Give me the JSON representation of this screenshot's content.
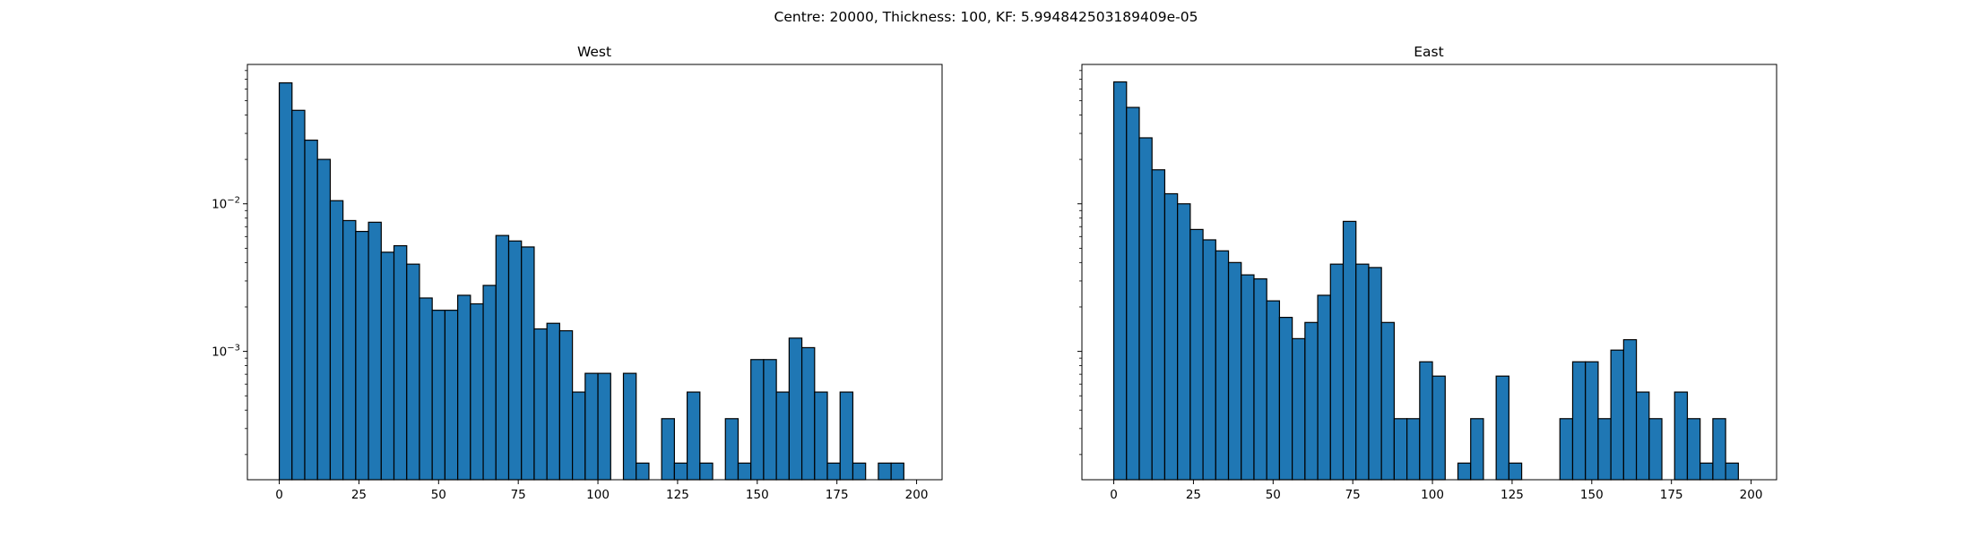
{
  "figure": {
    "suptitle": "Centre: 20000, Thickness: 100, KF: 5.994842503189409e-05"
  },
  "chart_data": [
    {
      "type": "bar",
      "title": "West",
      "xlabel": "",
      "ylabel": "",
      "yscale": "log",
      "xlim": [
        -10,
        208
      ],
      "ylim": [
        0.000135,
        0.088
      ],
      "xticks": [
        0,
        25,
        50,
        75,
        100,
        125,
        150,
        175,
        200
      ],
      "yticks": [
        0.001,
        0.01
      ],
      "ytick_labels": [
        "10−3",
        "10−2"
      ],
      "bin_width": 4,
      "bin_edges_start": 0,
      "values": [
        0.066,
        0.043,
        0.027,
        0.02,
        0.0105,
        0.0077,
        0.0065,
        0.0075,
        0.0047,
        0.0052,
        0.0039,
        0.0023,
        0.0019,
        0.0019,
        0.0024,
        0.0021,
        0.0028,
        0.0061,
        0.0056,
        0.0051,
        0.00142,
        0.00155,
        0.00138,
        0.00053,
        0.00071,
        0.00071,
        0,
        0.00071,
        0.000175,
        0,
        0.00035,
        0.000175,
        0.00053,
        0.000175,
        0,
        0.00035,
        0.000175,
        0.00088,
        0.00088,
        0.00053,
        0.00123,
        0.00106,
        0.00053,
        0.000175,
        0.00053,
        0.000175,
        0,
        0.000175,
        0.000175,
        0
      ],
      "bar_color": "#1f77b4",
      "edge_color": "#000000",
      "grid": false
    },
    {
      "type": "bar",
      "title": "East",
      "xlabel": "",
      "ylabel": "",
      "yscale": "log",
      "xlim": [
        -10,
        208
      ],
      "ylim": [
        0.000135,
        0.088
      ],
      "xticks": [
        0,
        25,
        50,
        75,
        100,
        125,
        150,
        175,
        200
      ],
      "yticks": [
        0.001,
        0.01
      ],
      "ytick_labels": [
        "",
        ""
      ],
      "bin_width": 4,
      "bin_edges_start": 0,
      "values": [
        0.067,
        0.045,
        0.028,
        0.017,
        0.0117,
        0.01,
        0.0067,
        0.0057,
        0.0048,
        0.004,
        0.0033,
        0.0031,
        0.0022,
        0.0017,
        0.00122,
        0.00157,
        0.0024,
        0.0039,
        0.0076,
        0.0039,
        0.0037,
        0.00157,
        0.00035,
        0.00035,
        0.00085,
        0.00068,
        0,
        0.000175,
        0.00035,
        0,
        0.00068,
        0.000175,
        0,
        0,
        0,
        0.00035,
        0.00085,
        0.00085,
        0.00035,
        0.00102,
        0.0012,
        0.00053,
        0.00035,
        0,
        0.00053,
        0.00035,
        0.000175,
        0.00035,
        0.000175,
        0
      ],
      "bar_color": "#1f77b4",
      "edge_color": "#000000",
      "grid": false
    }
  ]
}
